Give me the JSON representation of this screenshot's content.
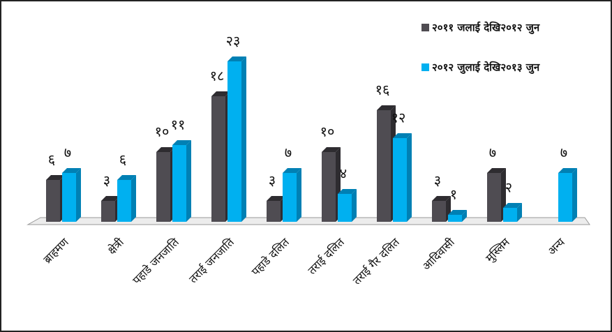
{
  "chart_data": {
    "type": "bar3d",
    "categories": [
      "ब्राहमण",
      "क्षेत्री",
      "पहाडे जनजाति",
      "तराई जनजाति",
      "पहाडे दलित",
      "तराई दलित",
      "तराई गैर दलित",
      "आदिवासी",
      "मुस्लिम",
      "अन्य"
    ],
    "series": [
      {
        "name": "२०११ जलाई देखि२०१२ जुन",
        "color": "#4f4c52",
        "side": "#2e2c30",
        "values": [
          6,
          3,
          10,
          18,
          3,
          10,
          16,
          3,
          7,
          null
        ],
        "value_labels": [
          "६",
          "३",
          "१०",
          "१८",
          "३",
          "१०",
          "१६",
          "३",
          "७",
          null
        ]
      },
      {
        "name": "२०१२ जुलाई देखि२०१३ जुन",
        "color": "#00b0f0",
        "side": "#0080b4",
        "values": [
          7,
          6,
          11,
          23,
          7,
          4,
          12,
          1,
          2,
          7
        ],
        "value_labels": [
          "७",
          "६",
          "११",
          "२३",
          "७",
          "४",
          "१२",
          "१",
          "२",
          "७"
        ]
      }
    ]
  }
}
